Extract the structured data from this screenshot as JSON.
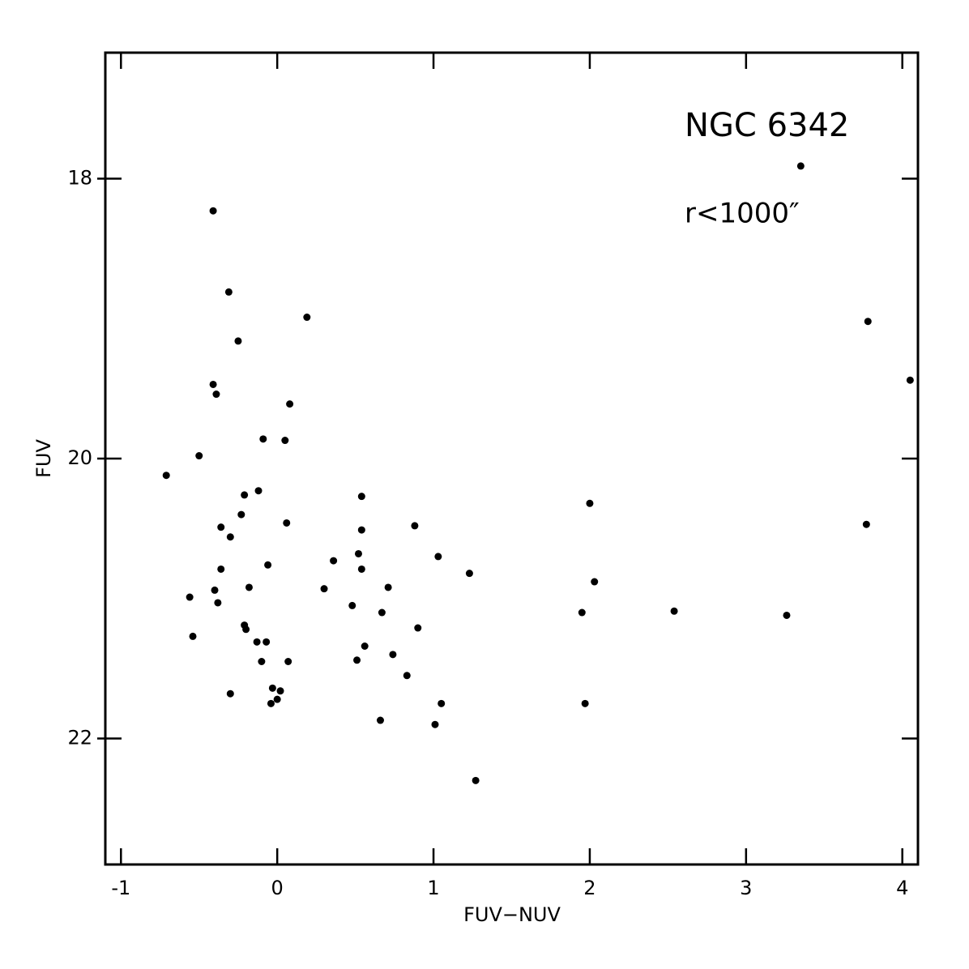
{
  "chart_data": {
    "type": "scatter",
    "annotations": [
      "NGC 6342",
      "r<1000″"
    ],
    "x_label": "FUV−NUV",
    "y_label": "FUV",
    "xlim": [
      -1.1,
      4.1
    ],
    "ylim": [
      22.9,
      17.1
    ],
    "xticks": [
      -1,
      0,
      1,
      2,
      3,
      4
    ],
    "yticks": [
      18,
      20,
      22
    ],
    "color": "#000000",
    "x": [
      3.35,
      -0.41,
      -0.31,
      0.19,
      3.78,
      -0.25,
      -0.41,
      -0.39,
      4.05,
      0.08,
      -0.09,
      0.05,
      -0.5,
      -0.71,
      -0.12,
      -0.21,
      0.54,
      2.0,
      -0.23,
      0.06,
      -0.36,
      0.54,
      0.88,
      3.77,
      -0.3,
      0.52,
      1.03,
      0.36,
      -0.06,
      -0.36,
      0.54,
      1.23,
      -0.18,
      0.3,
      0.71,
      2.03,
      -0.4,
      -0.56,
      -0.38,
      0.48,
      0.67,
      1.95,
      2.54,
      3.26,
      -0.21,
      -0.2,
      0.9,
      -0.54,
      -0.13,
      -0.07,
      0.56,
      0.74,
      -0.1,
      0.51,
      0.07,
      0.83,
      -0.03,
      0.02,
      -0.3,
      0.0,
      -0.04,
      1.05,
      1.97,
      0.66,
      1.01,
      1.27
    ],
    "values": [
      17.91,
      18.23,
      18.81,
      18.99,
      19.02,
      19.16,
      19.47,
      19.54,
      19.44,
      19.61,
      19.86,
      19.87,
      19.98,
      20.12,
      20.23,
      20.26,
      20.27,
      20.32,
      20.4,
      20.46,
      20.49,
      20.51,
      20.48,
      20.47,
      20.56,
      20.68,
      20.7,
      20.73,
      20.76,
      20.79,
      20.79,
      20.82,
      20.92,
      20.93,
      20.92,
      20.88,
      20.94,
      20.99,
      21.03,
      21.05,
      21.1,
      21.1,
      21.09,
      21.12,
      21.19,
      21.22,
      21.21,
      21.27,
      21.31,
      21.31,
      21.34,
      21.4,
      21.45,
      21.44,
      21.45,
      21.55,
      21.64,
      21.66,
      21.68,
      21.72,
      21.75,
      21.75,
      21.75,
      21.87,
      21.9,
      22.3
    ]
  }
}
